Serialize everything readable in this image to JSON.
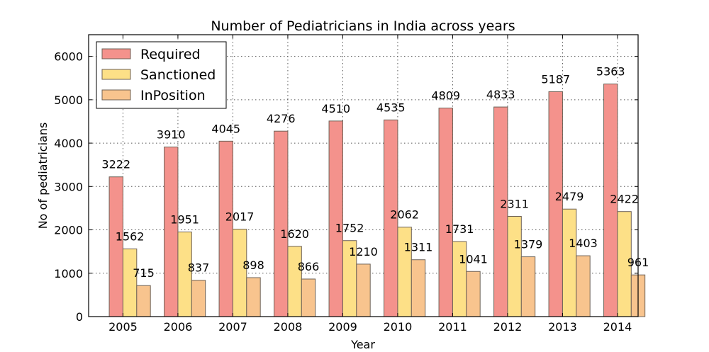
{
  "chart_data": {
    "type": "bar",
    "title": "Number of Pediatricians in India across years",
    "xlabel": "Year",
    "ylabel": "No of pediatricians",
    "categories": [
      "2005",
      "2006",
      "2007",
      "2008",
      "2009",
      "2010",
      "2011",
      "2012",
      "2013",
      "2014"
    ],
    "series": [
      {
        "name": "Required",
        "color": "#f4928c",
        "values": [
          3222,
          3910,
          4045,
          4276,
          4510,
          4535,
          4809,
          4833,
          5187,
          5363
        ]
      },
      {
        "name": "Sanctioned",
        "color": "#fde087",
        "values": [
          1562,
          1951,
          2017,
          1620,
          1752,
          2062,
          1731,
          2311,
          2479,
          2422
        ]
      },
      {
        "name": "InPosition",
        "color": "#f8c48e",
        "values": [
          715,
          837,
          898,
          866,
          1210,
          1311,
          1041,
          1379,
          1403,
          961
        ]
      }
    ],
    "ylim": [
      0,
      6500
    ],
    "yticks": [
      0,
      1000,
      2000,
      3000,
      4000,
      5000,
      6000
    ],
    "grid": true,
    "legend": "top-left"
  }
}
